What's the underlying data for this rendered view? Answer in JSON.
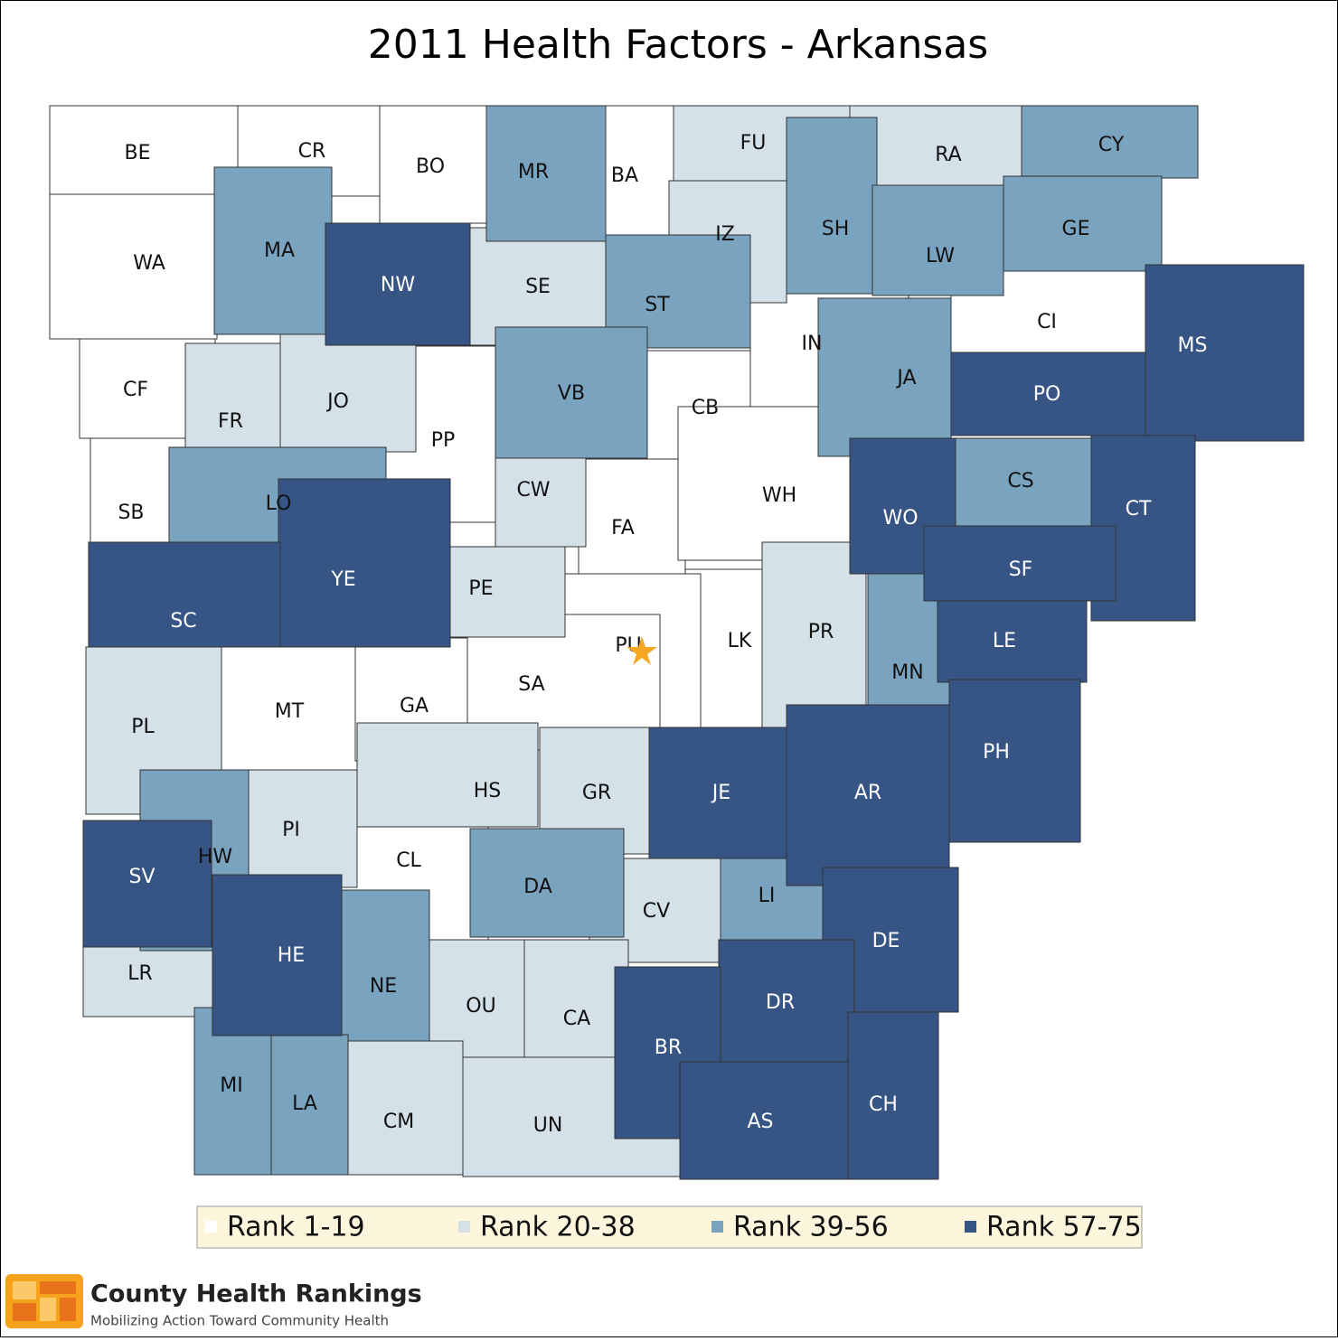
{
  "title": "2011 Health Factors - Arkansas",
  "legend": {
    "items": [
      {
        "label": "Rank 1-19",
        "color": "#ffffff",
        "counties": [
          "BE",
          "CR",
          "BO",
          "BA",
          "WA",
          "CF",
          "SB",
          "PP",
          "CB",
          "IN",
          "CI",
          "FA",
          "WH",
          "LK",
          "PU",
          "SA",
          "MT",
          "GA",
          "CL"
        ]
      },
      {
        "label": "Rank 20-38",
        "color": "#d4e1e9",
        "counties": [
          "FU",
          "RA",
          "IZ",
          "SE",
          "FR",
          "JO",
          "CW",
          "PE",
          "PR",
          "PL",
          "HS",
          "GR",
          "PI",
          "CV",
          "LR",
          "OU",
          "CA",
          "CM",
          "UN"
        ]
      },
      {
        "label": "Rank 39-56",
        "color": "#7aa3c0",
        "counties": [
          "MR",
          "CY",
          "SH",
          "GE",
          "LW",
          "MA",
          "ST",
          "VB",
          "JA",
          "LO",
          "CS",
          "MN",
          "HW",
          "DA",
          "LI",
          "NE",
          "MI",
          "LA"
        ]
      },
      {
        "label": "Rank 57-75",
        "color": "#365484",
        "counties": [
          "NW",
          "MS",
          "PO",
          "WO",
          "CT",
          "SF",
          "YE",
          "SC",
          "LE",
          "PH",
          "AR",
          "JE",
          "SV",
          "DE",
          "HE",
          "DR",
          "BR",
          "AS",
          "CH"
        ]
      }
    ]
  },
  "logo": {
    "name": "County Health Rankings",
    "tagline": "Mobilizing Action Toward Community Health"
  }
}
